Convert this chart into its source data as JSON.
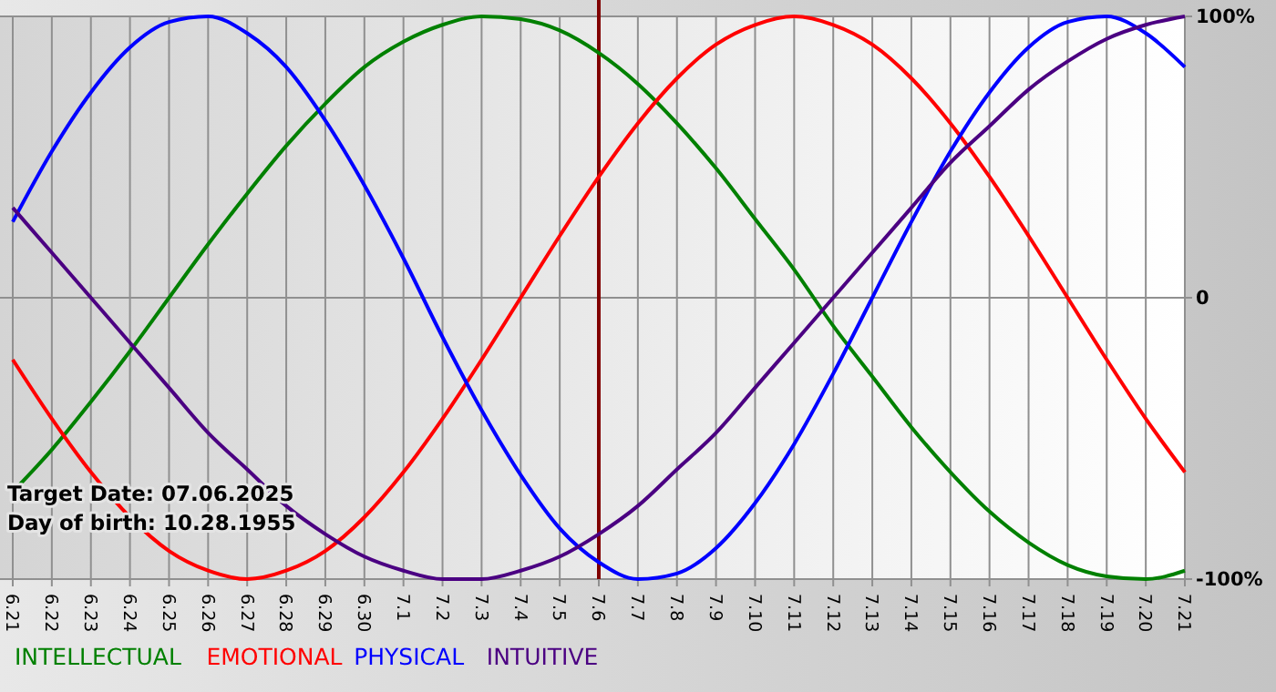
{
  "chart_data": {
    "type": "line",
    "categories": [
      "6.21",
      "6.22",
      "6.23",
      "6.24",
      "6.25",
      "6.26",
      "6.27",
      "6.28",
      "6.29",
      "6.30",
      "7.1",
      "7.2",
      "7.3",
      "7.4",
      "7.5",
      "7.6",
      "7.7",
      "7.8",
      "7.9",
      "7.10",
      "7.11",
      "7.12",
      "7.13",
      "7.14",
      "7.15",
      "7.16",
      "7.17",
      "7.18",
      "7.19",
      "7.20",
      "7.21"
    ],
    "series": [
      {
        "name": "INTELLECTUAL",
        "color": "#008000",
        "values": [
          -69,
          -54,
          -37,
          -19,
          0,
          19,
          37,
          54,
          69,
          82,
          91,
          97,
          100,
          99,
          95,
          87,
          76,
          62,
          46,
          28,
          10,
          -10,
          -28,
          -46,
          -62,
          -76,
          -87,
          -95,
          -99,
          -100,
          -97
        ]
      },
      {
        "name": "EMOTIONAL",
        "color": "#ff0000",
        "values": [
          -22,
          -43,
          -62,
          -78,
          -90,
          -97,
          -100,
          -97,
          -90,
          -78,
          -62,
          -43,
          -22,
          0,
          22,
          43,
          62,
          78,
          90,
          97,
          100,
          97,
          90,
          78,
          62,
          43,
          22,
          0,
          -22,
          -43,
          -62
        ]
      },
      {
        "name": "PHYSICAL",
        "color": "#0000ff",
        "values": [
          27,
          52,
          73,
          89,
          98,
          100,
          94,
          82,
          63,
          40,
          14,
          -14,
          -40,
          -63,
          -82,
          -94,
          -100,
          -98,
          -89,
          -73,
          -52,
          -27,
          0,
          27,
          52,
          73,
          89,
          98,
          100,
          94,
          82
        ]
      },
      {
        "name": "INTUITIVE",
        "color": "#4b0082",
        "values": [
          32,
          16,
          0,
          -16,
          -32,
          -48,
          -61,
          -74,
          -84,
          -92,
          -97,
          -100,
          -100,
          -97,
          -92,
          -84,
          -74,
          -61,
          -48,
          -32,
          -16,
          0,
          16,
          32,
          48,
          61,
          74,
          84,
          92,
          97,
          100
        ]
      }
    ],
    "ylim": [
      -100,
      100
    ],
    "yticks": [
      {
        "value": -100,
        "label": "-100%"
      },
      0,
      {
        "value": 100,
        "label": "100%"
      }
    ],
    "grid": true,
    "legend": "bottom",
    "marker": "none",
    "line_style": "solid",
    "ref_lines": [
      {
        "axis": "x",
        "value": "7.6",
        "color": "#800000"
      }
    ],
    "annotations": [
      "Target Date: 07.06.2025",
      "Day of birth: 10.28.1955"
    ]
  }
}
